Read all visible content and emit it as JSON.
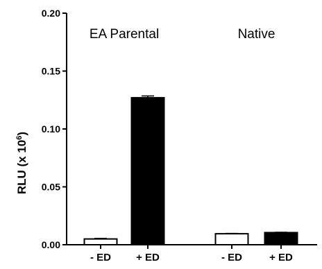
{
  "chart_data": {
    "type": "bar",
    "ylabel_main": "RLU (x 10",
    "ylabel_sup": "6",
    "ylabel_close": ")",
    "ylim": [
      0,
      0.2
    ],
    "yticks": [
      "0.00",
      "0.05",
      "0.10",
      "0.15",
      "0.20"
    ],
    "groups": [
      {
        "name": "EA Parental",
        "bars": [
          {
            "category": "- ED",
            "value": 0.005,
            "error": 0.0005,
            "fill": "#ffffff"
          },
          {
            "category": "+ ED",
            "value": 0.127,
            "error": 0.0015,
            "fill": "#000000"
          }
        ]
      },
      {
        "name": "Native",
        "bars": [
          {
            "category": "- ED",
            "value": 0.0095,
            "error": 0.0003,
            "fill": "#ffffff"
          },
          {
            "category": "+ ED",
            "value": 0.0105,
            "error": 0.0003,
            "fill": "#000000"
          }
        ]
      }
    ],
    "legend": "none",
    "grid": false
  }
}
